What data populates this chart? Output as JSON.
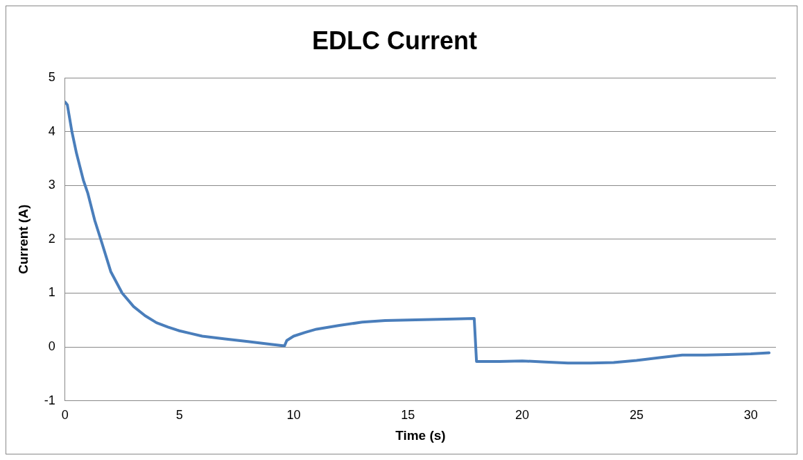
{
  "chart_data": {
    "type": "line",
    "title": "EDLC Current",
    "xlabel": "Time (s)",
    "ylabel": "Current (A)",
    "xlim": [
      0,
      31.1
    ],
    "xticks": [
      0,
      5,
      10,
      15,
      20,
      25,
      30
    ],
    "ylim": [
      -1,
      5
    ],
    "yticks": [
      -1,
      0,
      1,
      2,
      3,
      4,
      5
    ],
    "grid": "y",
    "legend": false,
    "marker": "none",
    "line_style": "solid",
    "series": [
      {
        "color": "#4a7ebb",
        "x": [
          0,
          0.1,
          0.3,
          0.5,
          0.8,
          1,
          1.3,
          1.6,
          2,
          2.5,
          3,
          3.5,
          4,
          4.5,
          5,
          5.5,
          6,
          7,
          8,
          9,
          9.6,
          9.7,
          10,
          10.5,
          11,
          12,
          13,
          14,
          15,
          16,
          17,
          17.9,
          18,
          19,
          20,
          21,
          22,
          23,
          24,
          25,
          26,
          27,
          28,
          29,
          30,
          30.8
        ],
        "values": [
          4.55,
          4.5,
          4.0,
          3.6,
          3.1,
          2.85,
          2.35,
          1.95,
          1.4,
          1.0,
          0.75,
          0.58,
          0.45,
          0.37,
          0.3,
          0.25,
          0.2,
          0.15,
          0.1,
          0.05,
          0.02,
          0.12,
          0.2,
          0.27,
          0.33,
          0.4,
          0.46,
          0.49,
          0.5,
          0.51,
          0.52,
          0.53,
          -0.27,
          -0.27,
          -0.26,
          -0.28,
          -0.3,
          -0.3,
          -0.29,
          -0.25,
          -0.2,
          -0.15,
          -0.15,
          -0.14,
          -0.13,
          -0.11
        ]
      }
    ]
  }
}
